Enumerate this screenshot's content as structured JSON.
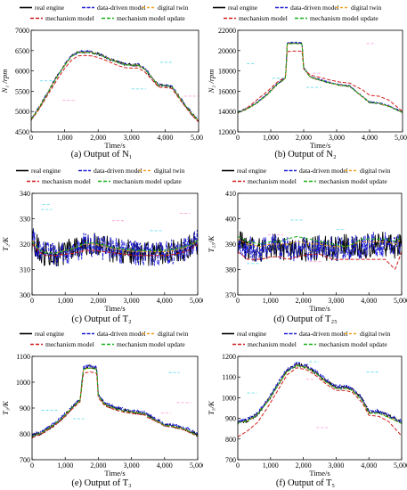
{
  "figure": {
    "legend": [
      "real engine",
      "data-driven model",
      "digital twin",
      "mechanism model",
      "mechanism model update"
    ],
    "colors": {
      "real_engine": "#000000",
      "data_driven": "#1f1fd8",
      "digital_twin": "#f0a020",
      "mechanism": "#d11a1a",
      "mechanism_update": "#18b018",
      "cyan_band": "#4fd8ee",
      "pink_band": "#ff8ad2"
    }
  },
  "panels": [
    {
      "caption": "(a) Output of N₁",
      "xlabel": "Time/s",
      "ylabel": "N₁ /rpm"
    },
    {
      "caption": "(b) Output of N₂",
      "xlabel": "Time/s",
      "ylabel": "N₂ /rpm"
    },
    {
      "caption": "(c) Output of T₂",
      "xlabel": "Time/s",
      "ylabel": "T₂/K"
    },
    {
      "caption": "(d) Output of T₂₅",
      "xlabel": "Time/s",
      "ylabel": "T₂₅/K"
    },
    {
      "caption": "(e) Output of T₃",
      "xlabel": "Time/s",
      "ylabel": "T₃/K"
    },
    {
      "caption": "(f) Output of T₅",
      "xlabel": "Time/s",
      "ylabel": "T₅/K"
    }
  ],
  "chart_data": [
    {
      "type": "line",
      "xlabel": "Time/s",
      "ylabel": "N₁ /rpm",
      "xlim": [
        0,
        5000
      ],
      "ylim": [
        4500,
        7000
      ],
      "xticks": [
        "0",
        "1,000",
        "2,000",
        "3,000",
        "4,000",
        "5,000"
      ],
      "yticks": [
        "4500",
        "5000",
        "5500",
        "6000",
        "6500",
        "7000"
      ],
      "noise": 35,
      "x": [
        0,
        200,
        400,
        600,
        800,
        1000,
        1200,
        1400,
        1600,
        1800,
        2000,
        2200,
        2400,
        2600,
        2800,
        3000,
        3200,
        3400,
        3600,
        3800,
        4000,
        4200,
        4400,
        4600,
        4800,
        5000
      ],
      "series": [
        {
          "name": "real engine",
          "values": [
            4810,
            5050,
            5330,
            5620,
            5900,
            6150,
            6360,
            6460,
            6470,
            6460,
            6420,
            6350,
            6280,
            6210,
            6160,
            6150,
            6150,
            6040,
            5850,
            5650,
            5640,
            5620,
            5380,
            5160,
            4950,
            4780
          ]
        },
        {
          "name": "data-driven model",
          "values": [
            4815,
            5055,
            5335,
            5625,
            5905,
            6155,
            6365,
            6465,
            6475,
            6465,
            6425,
            6355,
            6285,
            6215,
            6165,
            6155,
            6155,
            6045,
            5855,
            5655,
            5645,
            5625,
            5385,
            5165,
            4955,
            4785
          ]
        },
        {
          "name": "digital twin",
          "values": [
            4810,
            5045,
            5325,
            5615,
            5895,
            6145,
            6355,
            6455,
            6465,
            6455,
            6415,
            6345,
            6275,
            6205,
            6155,
            6145,
            6145,
            6035,
            5845,
            5645,
            5635,
            5615,
            5375,
            5155,
            4945,
            4775
          ]
        },
        {
          "name": "mechanism model",
          "values": [
            4790,
            5010,
            5280,
            5550,
            5820,
            6060,
            6260,
            6370,
            6380,
            6370,
            6330,
            6270,
            6200,
            6130,
            6080,
            6070,
            6070,
            5970,
            5790,
            5600,
            5590,
            5570,
            5340,
            5120,
            4910,
            4740
          ]
        },
        {
          "name": "mechanism model update",
          "values": [
            4805,
            5040,
            5320,
            5610,
            5890,
            6140,
            6350,
            6450,
            6460,
            6450,
            6410,
            6340,
            6270,
            6200,
            6150,
            6140,
            6140,
            6030,
            5840,
            5645,
            5635,
            5615,
            5375,
            5155,
            4945,
            4775
          ]
        }
      ]
    },
    {
      "type": "line",
      "xlabel": "Time/s",
      "ylabel": "N₂ /rpm",
      "xlim": [
        0,
        5000
      ],
      "ylim": [
        12000,
        22000
      ],
      "xticks": [
        "0",
        "1,000",
        "2,000",
        "3,000",
        "4,000",
        "5,000"
      ],
      "yticks": [
        "12000",
        "14000",
        "16000",
        "18000",
        "20000",
        "22000"
      ],
      "noise": 60,
      "x": [
        0,
        300,
        600,
        900,
        1200,
        1450,
        1500,
        1700,
        1950,
        2000,
        2200,
        2500,
        2800,
        3100,
        3400,
        3500,
        3800,
        4000,
        4300,
        4600,
        5000
      ],
      "series": [
        {
          "name": "real engine",
          "values": [
            13900,
            14300,
            14900,
            15700,
            16700,
            17300,
            20700,
            20750,
            20700,
            18300,
            17400,
            17100,
            16800,
            16600,
            16500,
            16200,
            15400,
            14900,
            14800,
            14500,
            13900
          ]
        },
        {
          "name": "data-driven model",
          "values": [
            13950,
            14350,
            14950,
            15750,
            16750,
            17350,
            20750,
            20800,
            20750,
            18350,
            17450,
            17150,
            16850,
            16650,
            16550,
            16250,
            15450,
            14950,
            14850,
            14550,
            13950
          ]
        },
        {
          "name": "digital twin",
          "values": [
            13900,
            14300,
            14900,
            15700,
            16700,
            17300,
            20650,
            20700,
            20650,
            18300,
            17400,
            17100,
            16800,
            16600,
            16500,
            16200,
            15400,
            14900,
            14800,
            14500,
            13900
          ]
        },
        {
          "name": "mechanism model",
          "values": [
            13850,
            14400,
            15200,
            16000,
            16900,
            17400,
            19900,
            19950,
            19950,
            18200,
            17600,
            17350,
            17100,
            16900,
            16800,
            16600,
            16100,
            15600,
            15500,
            15100,
            14000
          ]
        },
        {
          "name": "mechanism model update",
          "values": [
            13900,
            14300,
            14900,
            15700,
            16700,
            17300,
            20650,
            20700,
            20650,
            18300,
            17400,
            17100,
            16800,
            16600,
            16500,
            16200,
            15400,
            14900,
            14800,
            14500,
            13900
          ]
        }
      ]
    },
    {
      "type": "line",
      "xlabel": "Time/s",
      "ylabel": "T₂/K",
      "xlim": [
        0,
        5000
      ],
      "ylim": [
        300,
        340
      ],
      "xticks": [
        "0",
        "1,000",
        "2,000",
        "3,000",
        "4,000",
        "5,000"
      ],
      "yticks": [
        "300",
        "310",
        "320",
        "330",
        "340"
      ],
      "noise": 5,
      "x": [
        0,
        200,
        400,
        700,
        1000,
        1300,
        1600,
        1900,
        2200,
        2500,
        2800,
        3100,
        3400,
        3700,
        4000,
        4300,
        4600,
        4800,
        5000
      ],
      "series": [
        {
          "name": "real engine",
          "values": [
            322,
            318,
            316,
            316,
            317,
            318,
            319.5,
            319.5,
            318.5,
            317.5,
            317,
            316.5,
            316.5,
            316.5,
            316.5,
            317,
            318,
            319,
            321
          ]
        },
        {
          "name": "data-driven model",
          "values": [
            322,
            318,
            316,
            316,
            317,
            318,
            319.5,
            319.5,
            318.5,
            317.5,
            317,
            316.5,
            316.5,
            316.5,
            316.5,
            317,
            318,
            319,
            321
          ]
        },
        {
          "name": "digital twin",
          "values": [
            321.5,
            318,
            316.5,
            316.5,
            317.5,
            318.5,
            320,
            320,
            319,
            318,
            317.5,
            317,
            317,
            317,
            317,
            317.5,
            318.5,
            319.5,
            321.5
          ]
        },
        {
          "name": "mechanism model",
          "values": [
            320,
            317,
            315.5,
            315.5,
            316,
            316.5,
            317.5,
            317.5,
            317,
            316.5,
            316,
            315.5,
            315.5,
            315.5,
            315.5,
            316,
            317,
            318,
            320
          ]
        },
        {
          "name": "mechanism model update",
          "values": [
            321,
            318,
            316.5,
            316.5,
            317.5,
            318.5,
            320.5,
            320.5,
            319.5,
            318.5,
            318,
            317.5,
            317.5,
            317.5,
            317.5,
            318,
            319,
            320,
            321.5
          ]
        }
      ]
    },
    {
      "type": "line",
      "xlabel": "Time/s",
      "ylabel": "T₂₅/K",
      "xlim": [
        0,
        5000
      ],
      "ylim": [
        370,
        410
      ],
      "xticks": [
        "0",
        "1,000",
        "2,000",
        "3,000",
        "4,000",
        "5,000"
      ],
      "yticks": [
        "370",
        "380",
        "390",
        "400",
        "410"
      ],
      "noise": 5,
      "x": [
        0,
        300,
        700,
        1000,
        1300,
        1500,
        1800,
        2200,
        2500,
        2900,
        3300,
        3500,
        3800,
        4200,
        4500,
        4800,
        5000
      ],
      "series": [
        {
          "name": "real engine",
          "values": [
            391,
            388,
            388,
            389,
            389,
            388,
            388,
            388,
            389,
            388,
            389,
            389,
            389,
            390,
            390,
            388,
            391
          ]
        },
        {
          "name": "data-driven model",
          "values": [
            391,
            388,
            388,
            389,
            389,
            388,
            388,
            388,
            389,
            388,
            389,
            389,
            389,
            390,
            390,
            388,
            391
          ]
        },
        {
          "name": "digital twin",
          "values": [
            392,
            390,
            389,
            390,
            390,
            390,
            391,
            390,
            390,
            389,
            389,
            390,
            391,
            391,
            391,
            390,
            392
          ]
        },
        {
          "name": "mechanism model",
          "values": [
            387,
            384,
            384,
            385,
            385,
            384,
            385,
            386,
            386,
            384,
            384,
            384,
            384,
            384,
            384,
            380,
            387
          ]
        },
        {
          "name": "mechanism model update",
          "values": [
            393,
            391,
            390,
            391,
            391,
            392,
            393,
            392,
            391,
            390,
            389,
            390,
            392,
            392,
            392,
            391,
            393
          ]
        }
      ]
    },
    {
      "type": "line",
      "xlabel": "Time/s",
      "ylabel": "T₃/K",
      "xlim": [
        0,
        5000
      ],
      "ylim": [
        700,
        1100
      ],
      "xticks": [
        "0",
        "1,000",
        "2,000",
        "3,000",
        "4,000",
        "5,000"
      ],
      "yticks": [
        "700",
        "800",
        "900",
        "1000",
        "1100"
      ],
      "noise": 8,
      "x": [
        0,
        300,
        600,
        900,
        1200,
        1450,
        1550,
        1750,
        1950,
        2000,
        2200,
        2500,
        2800,
        3100,
        3400,
        3500,
        3800,
        4000,
        4300,
        4600,
        5000
      ],
      "series": [
        {
          "name": "real engine",
          "values": [
            790,
            805,
            830,
            860,
            900,
            930,
            1055,
            1060,
            1055,
            950,
            915,
            900,
            890,
            885,
            880,
            870,
            850,
            835,
            830,
            820,
            795
          ]
        },
        {
          "name": "data-driven model",
          "values": [
            795,
            808,
            833,
            863,
            903,
            933,
            1058,
            1063,
            1058,
            953,
            918,
            903,
            893,
            888,
            883,
            873,
            853,
            838,
            833,
            823,
            798
          ]
        },
        {
          "name": "digital twin",
          "values": [
            790,
            805,
            830,
            860,
            900,
            930,
            1050,
            1055,
            1050,
            948,
            913,
            898,
            888,
            883,
            878,
            868,
            848,
            833,
            828,
            818,
            793
          ]
        },
        {
          "name": "mechanism model",
          "values": [
            785,
            800,
            825,
            855,
            895,
            925,
            1035,
            1040,
            1035,
            940,
            908,
            893,
            883,
            878,
            873,
            863,
            845,
            830,
            825,
            815,
            790
          ]
        },
        {
          "name": "mechanism model update",
          "values": [
            790,
            805,
            830,
            860,
            900,
            930,
            1050,
            1055,
            1050,
            948,
            913,
            898,
            888,
            883,
            878,
            868,
            848,
            833,
            828,
            818,
            793
          ]
        }
      ]
    },
    {
      "type": "line",
      "xlabel": "Time/s",
      "ylabel": "T₅/K",
      "xlim": [
        0,
        5000
      ],
      "ylim": [
        700,
        1200
      ],
      "xticks": [
        "0",
        "1,000",
        "2,000",
        "3,000",
        "4,000",
        "5,000"
      ],
      "yticks": [
        "700",
        "800",
        "900",
        "1000",
        "1100",
        "1200"
      ],
      "noise": 10,
      "x": [
        0,
        300,
        600,
        900,
        1200,
        1500,
        1800,
        2100,
        2400,
        2700,
        3000,
        3300,
        3500,
        3800,
        4000,
        4300,
        4600,
        5000
      ],
      "series": [
        {
          "name": "real engine",
          "values": [
            880,
            890,
            920,
            980,
            1060,
            1130,
            1160,
            1150,
            1120,
            1080,
            1050,
            1050,
            1040,
            990,
            930,
            930,
            910,
            880
          ]
        },
        {
          "name": "data-driven model",
          "values": [
            885,
            895,
            925,
            985,
            1065,
            1135,
            1165,
            1155,
            1125,
            1085,
            1055,
            1055,
            1045,
            995,
            935,
            935,
            915,
            885
          ]
        },
        {
          "name": "digital twin",
          "values": [
            878,
            888,
            918,
            978,
            1055,
            1125,
            1155,
            1145,
            1115,
            1075,
            1045,
            1045,
            1035,
            985,
            925,
            925,
            905,
            875
          ]
        },
        {
          "name": "mechanism model",
          "values": [
            810,
            840,
            880,
            950,
            1030,
            1110,
            1145,
            1135,
            1105,
            1065,
            1035,
            1035,
            1025,
            975,
            915,
            910,
            885,
            815
          ]
        },
        {
          "name": "mechanism model update",
          "values": [
            878,
            888,
            918,
            978,
            1055,
            1125,
            1155,
            1145,
            1115,
            1075,
            1045,
            1045,
            1035,
            985,
            925,
            925,
            905,
            875
          ]
        }
      ]
    }
  ]
}
